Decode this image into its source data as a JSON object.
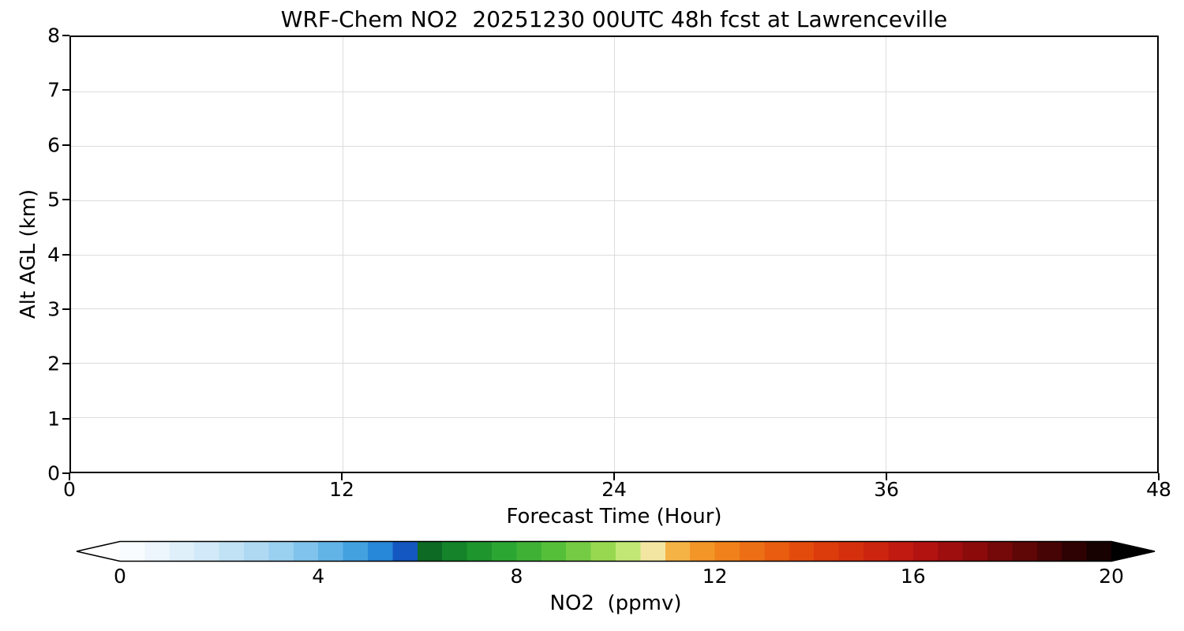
{
  "chart_data": {
    "type": "heatmap",
    "title": "WRF-Chem NO2  20251230 00UTC 48h fcst at Lawrenceville",
    "xlabel": "Forecast Time (Hour)",
    "ylabel": "Alt AGL (km)",
    "xlim": [
      0,
      48
    ],
    "ylim": [
      0,
      8
    ],
    "x_ticks": [
      0,
      12,
      24,
      36,
      48
    ],
    "y_ticks": [
      0,
      1,
      2,
      3,
      4,
      5,
      6,
      7,
      8
    ],
    "grid": true,
    "plot_area_content": "empty (all white; no NO2 field values visible above colormap minimum)",
    "colorbar": {
      "label": "NO2  (ppmv)",
      "ticks": [
        0,
        4,
        8,
        12,
        16,
        20
      ],
      "range": [
        0,
        20
      ],
      "extend": "both",
      "under_color": "#ffffff",
      "over_color": "#000000",
      "segments": 40,
      "stops": [
        {
          "pos": 0.0,
          "color": "#ffffff"
        },
        {
          "pos": 0.03,
          "color": "#f0f8fd"
        },
        {
          "pos": 0.075,
          "color": "#d9edf9"
        },
        {
          "pos": 0.125,
          "color": "#b9def4"
        },
        {
          "pos": 0.175,
          "color": "#8fcbee"
        },
        {
          "pos": 0.215,
          "color": "#5fb2e6"
        },
        {
          "pos": 0.25,
          "color": "#3397dd"
        },
        {
          "pos": 0.275,
          "color": "#1b77d2"
        },
        {
          "pos": 0.29,
          "color": "#1250bd"
        },
        {
          "pos": 0.3,
          "color": "#0d35a8"
        },
        {
          "pos": 0.308,
          "color": "#0b6623"
        },
        {
          "pos": 0.34,
          "color": "#15852b"
        },
        {
          "pos": 0.385,
          "color": "#2aa532"
        },
        {
          "pos": 0.43,
          "color": "#4cbb38"
        },
        {
          "pos": 0.47,
          "color": "#7ecf45"
        },
        {
          "pos": 0.505,
          "color": "#b2e15c"
        },
        {
          "pos": 0.525,
          "color": "#dff0a0"
        },
        {
          "pos": 0.535,
          "color": "#f2ecb0"
        },
        {
          "pos": 0.55,
          "color": "#f6c65c"
        },
        {
          "pos": 0.575,
          "color": "#f5a02e"
        },
        {
          "pos": 0.615,
          "color": "#f07f1a"
        },
        {
          "pos": 0.66,
          "color": "#e95f10"
        },
        {
          "pos": 0.705,
          "color": "#df3f0a"
        },
        {
          "pos": 0.75,
          "color": "#d02a0e"
        },
        {
          "pos": 0.8,
          "color": "#bb1512"
        },
        {
          "pos": 0.845,
          "color": "#9a0d0d"
        },
        {
          "pos": 0.89,
          "color": "#730808"
        },
        {
          "pos": 0.935,
          "color": "#4a0404"
        },
        {
          "pos": 0.97,
          "color": "#260202"
        },
        {
          "pos": 1.0,
          "color": "#0d0101"
        }
      ]
    }
  }
}
